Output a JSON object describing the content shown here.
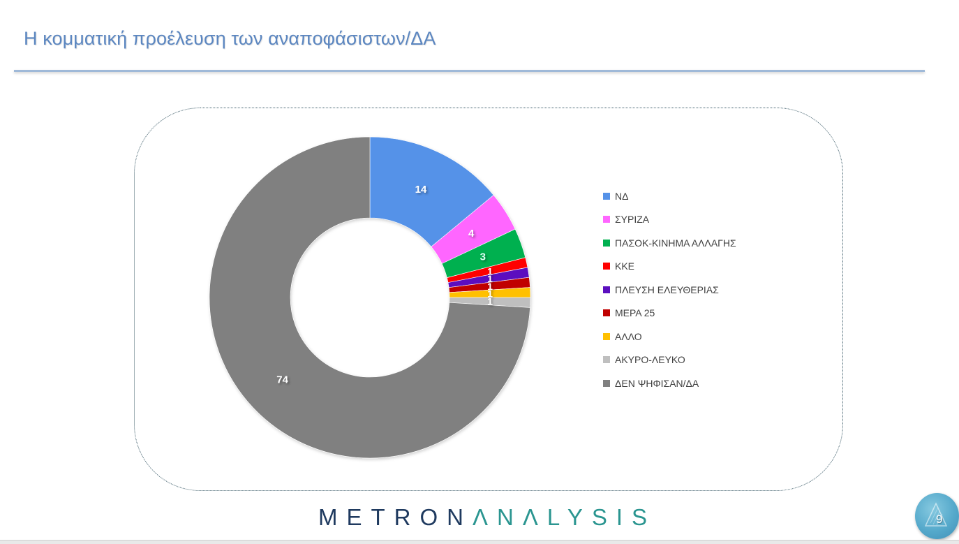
{
  "slide": {
    "title": "Η κομματική προέλευση των αναποφάσιστων/ΔΑ",
    "page_number": "9"
  },
  "logo": {
    "part1": "METRON",
    "part2": "ΛNΛLYSIS"
  },
  "legend": [
    {
      "label": "ΝΔ",
      "color": "#5592E8"
    },
    {
      "label": "ΣΥΡΙΖΑ",
      "color": "#FF66FF"
    },
    {
      "label": "ΠΑΣΟΚ-ΚΙΝΗΜΑ  ΑΛΛΑΓΗΣ",
      "color": "#00B050"
    },
    {
      "label": "ΚΚΕ",
      "color": "#FF0000"
    },
    {
      "label": "ΠΛΕΥΣΗ ΕΛΕΥΘΕΡΙΑΣ",
      "color": "#5B0FBF"
    },
    {
      "label": "ΜΕΡΑ 25",
      "color": "#C00000"
    },
    {
      "label": "ΑΛΛΟ",
      "color": "#FFC000"
    },
    {
      "label": "ΑΚΥΡΟ-ΛΕΥΚΟ",
      "color": "#BFBFBF"
    },
    {
      "label": "ΔΕΝ ΨΗΦΙΣΑΝ/ΔΑ",
      "color": "#808080"
    }
  ],
  "chart_data": {
    "type": "pie",
    "subtype": "donut",
    "title": "Η κομματική προέλευση των αναποφάσιστων/ΔΑ",
    "categories": [
      "ΝΔ",
      "ΣΥΡΙΖΑ",
      "ΠΑΣΟΚ-ΚΙΝΗΜΑ  ΑΛΛΑΓΗΣ",
      "ΚΚΕ",
      "ΠΛΕΥΣΗ ΕΛΕΥΘΕΡΙΑΣ",
      "ΜΕΡΑ 25",
      "ΑΛΛΟ",
      "ΑΚΥΡΟ-ΛΕΥΚΟ",
      "ΔΕΝ ΨΗΦΙΣΑΝ/ΔΑ"
    ],
    "values": [
      14,
      4,
      3,
      1,
      1,
      1,
      1,
      1,
      74
    ],
    "data_labels": [
      "14",
      "4",
      "3",
      "1",
      "1",
      "1",
      "1",
      "1",
      "74"
    ],
    "colors": [
      "#5592E8",
      "#FF66FF",
      "#00B050",
      "#FF0000",
      "#5B0FBF",
      "#C00000",
      "#FFC000",
      "#BFBFBF",
      "#808080"
    ],
    "legend_position": "right",
    "unit": "%"
  }
}
